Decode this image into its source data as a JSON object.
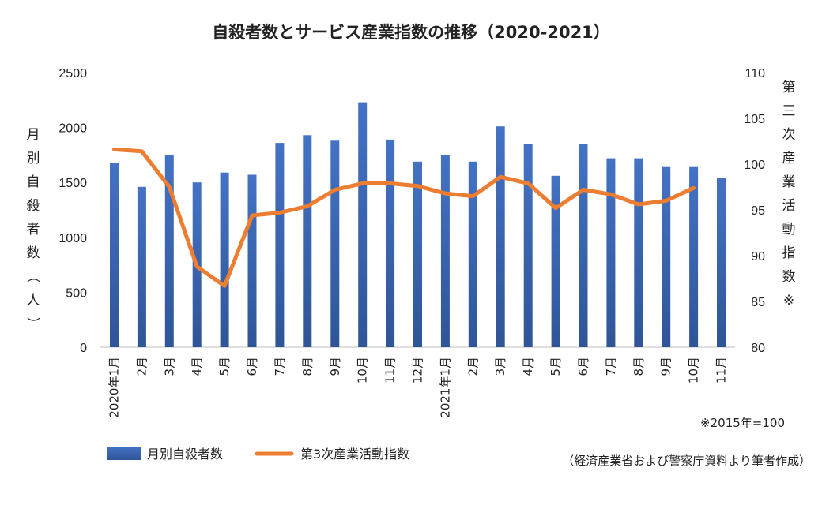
{
  "chart_data": {
    "type": "bar+line",
    "title": "自殺者数とサービス産業指数の推移（2020-2021）",
    "categories": [
      "2020年1月",
      "2月",
      "3月",
      "4月",
      "5月",
      "6月",
      "7月",
      "8月",
      "9月",
      "10月",
      "11月",
      "12月",
      "2021年1月",
      "2月",
      "3月",
      "4月",
      "5月",
      "6月",
      "7月",
      "8月",
      "9月",
      "10月",
      "11月"
    ],
    "ylabel_left": "月別自殺者数（人）",
    "ylabel_right": "第三次産業活動指数※",
    "ylim_left": [
      0,
      2500
    ],
    "ylim_right": [
      80,
      110
    ],
    "yticks_left": [
      "0",
      "500",
      "1000",
      "1500",
      "2000",
      "2500"
    ],
    "yticks_right": [
      "80",
      "85",
      "90",
      "95",
      "100",
      "105",
      "110"
    ],
    "series": [
      {
        "name": "月別自殺者数",
        "type": "bar",
        "axis": "left",
        "color": "#4472c4",
        "values": [
          1680,
          1460,
          1750,
          1500,
          1590,
          1570,
          1860,
          1930,
          1880,
          2230,
          1890,
          1690,
          1750,
          1690,
          2010,
          1850,
          1560,
          1850,
          1720,
          1720,
          1640,
          1640,
          1540
        ]
      },
      {
        "name": "第3次産業活動指数",
        "type": "line",
        "axis": "right",
        "color": "#ed7d31",
        "values": [
          101.6,
          101.4,
          97.5,
          88.8,
          86.7,
          94.4,
          94.7,
          95.4,
          97.2,
          97.9,
          97.9,
          97.6,
          96.8,
          96.5,
          98.6,
          97.9,
          95.2,
          97.2,
          96.7,
          95.6,
          96.0,
          97.4,
          null
        ]
      }
    ],
    "legend_position": "bottom-left",
    "grid": false,
    "note": "※2015年=100",
    "source": "（経済産業省および警察庁資料より筆者作成）"
  }
}
